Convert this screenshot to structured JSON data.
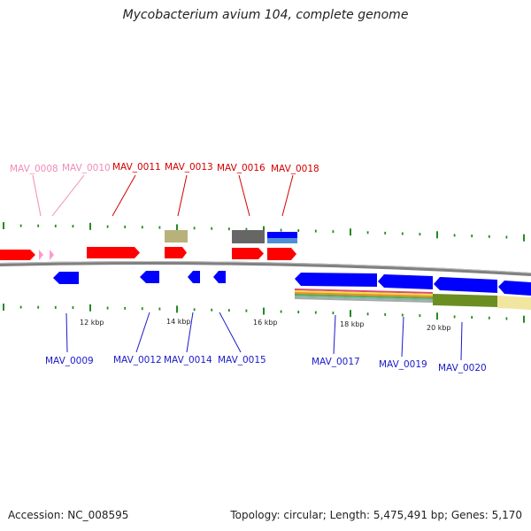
{
  "title": "Mycobacterium avium 104, complete genome",
  "footer": {
    "accession": "Accession: NC_008595",
    "summary": "Topology: circular; Length: 5,475,491 bp; Genes: 5,170"
  },
  "colors": {
    "forward_gene": "#ff0000",
    "forward_gene_faded": "#ff99cc",
    "reverse_gene": "#0000ff",
    "backbone": "#808080",
    "tick": "#228b22",
    "olive_feature": "#b8b27a",
    "dark_feature": "#666666",
    "label_forward": "#d40000",
    "label_faded": "#f08cb8",
    "label_reverse": "#1a1ac8"
  },
  "scale_labels": [
    "12 kbp",
    "14 kbp",
    "16 kbp",
    "18 kbp",
    "20 kbp"
  ],
  "genes_forward": [
    {
      "name": "MAV_0008",
      "faded": true
    },
    {
      "name": "MAV_0010",
      "faded": true
    },
    {
      "name": "MAV_0011",
      "faded": false
    },
    {
      "name": "MAV_0013",
      "faded": false
    },
    {
      "name": "MAV_0016",
      "faded": false
    },
    {
      "name": "MAV_0018",
      "faded": false
    }
  ],
  "genes_reverse": [
    {
      "name": "MAV_0009"
    },
    {
      "name": "MAV_0012"
    },
    {
      "name": "MAV_0014"
    },
    {
      "name": "MAV_0015"
    },
    {
      "name": "MAV_0017"
    },
    {
      "name": "MAV_0019"
    },
    {
      "name": "MAV_0020"
    }
  ]
}
